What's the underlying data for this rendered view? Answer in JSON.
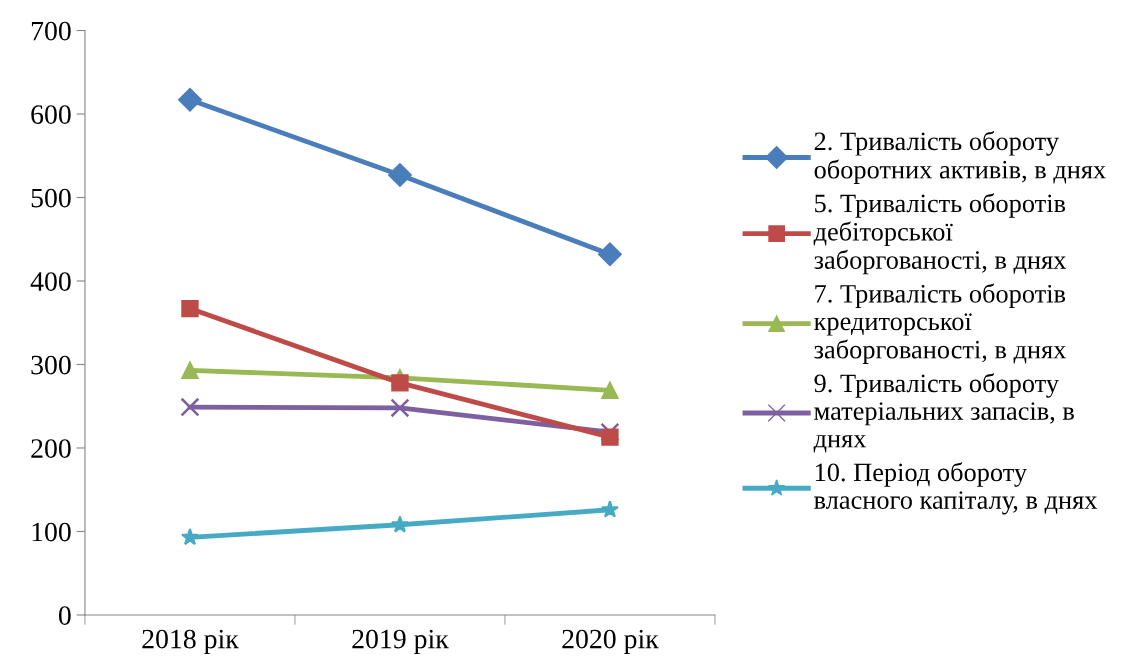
{
  "chart_data": {
    "type": "line",
    "categories": [
      "2018 рік",
      "2019 рік",
      "2020 рік"
    ],
    "series": [
      {
        "name": "2. Тривалість обороту оборотних активів, в днях",
        "color": "#4a7ebb",
        "marker": "diamond",
        "values": [
          617,
          527,
          432
        ]
      },
      {
        "name": "5. Тривалість оборотів дебіторської заборгованості, в днях",
        "color": "#be4b48",
        "marker": "square",
        "values": [
          367,
          278,
          213
        ]
      },
      {
        "name": "7. Тривалість оборотів кредиторської заборгованості, в днях",
        "color": "#98b954",
        "marker": "triangle",
        "values": [
          293,
          284,
          269
        ]
      },
      {
        "name": "9. Тривалість обороту матеріальних запасів, в днях",
        "color": "#7d60a0",
        "marker": "cross",
        "values": [
          249,
          248,
          219
        ]
      },
      {
        "name": "10. Період обороту власного капіталу, в днях",
        "color": "#46aac5",
        "marker": "star",
        "values": [
          93,
          108,
          126
        ]
      }
    ],
    "ylim": [
      0,
      700
    ],
    "yticks": [
      0,
      100,
      200,
      300,
      400,
      500,
      600,
      700
    ],
    "grid": false,
    "legend": "right",
    "line_style": "solid"
  }
}
